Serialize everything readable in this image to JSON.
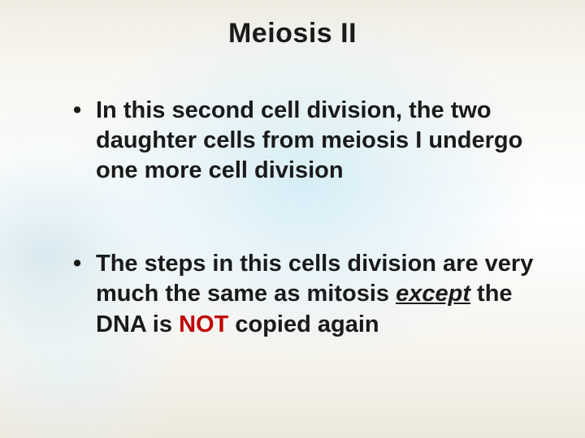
{
  "slide": {
    "title": "Meiosis II",
    "title_fontsize": 34,
    "title_color": "#1a1a1a",
    "bullet_fontsize": 29,
    "bullet_color": "#1a1a1a",
    "not_color": "#c00000",
    "bullets": [
      {
        "pre": "In this second cell division, the two daughter cells from meiosis I undergo one more cell division"
      },
      {
        "pre": "The steps in this cells division are very much the same as mitosis ",
        "except": "except",
        "mid": " the DNA is ",
        "not": "NOT",
        "post": " copied again"
      }
    ],
    "background": {
      "base_gradient_top": "#f0ece2",
      "base_gradient_mid": "#ffffff",
      "base_gradient_bottom": "#ede8dc",
      "halo_color": "#d2ebf5"
    }
  }
}
